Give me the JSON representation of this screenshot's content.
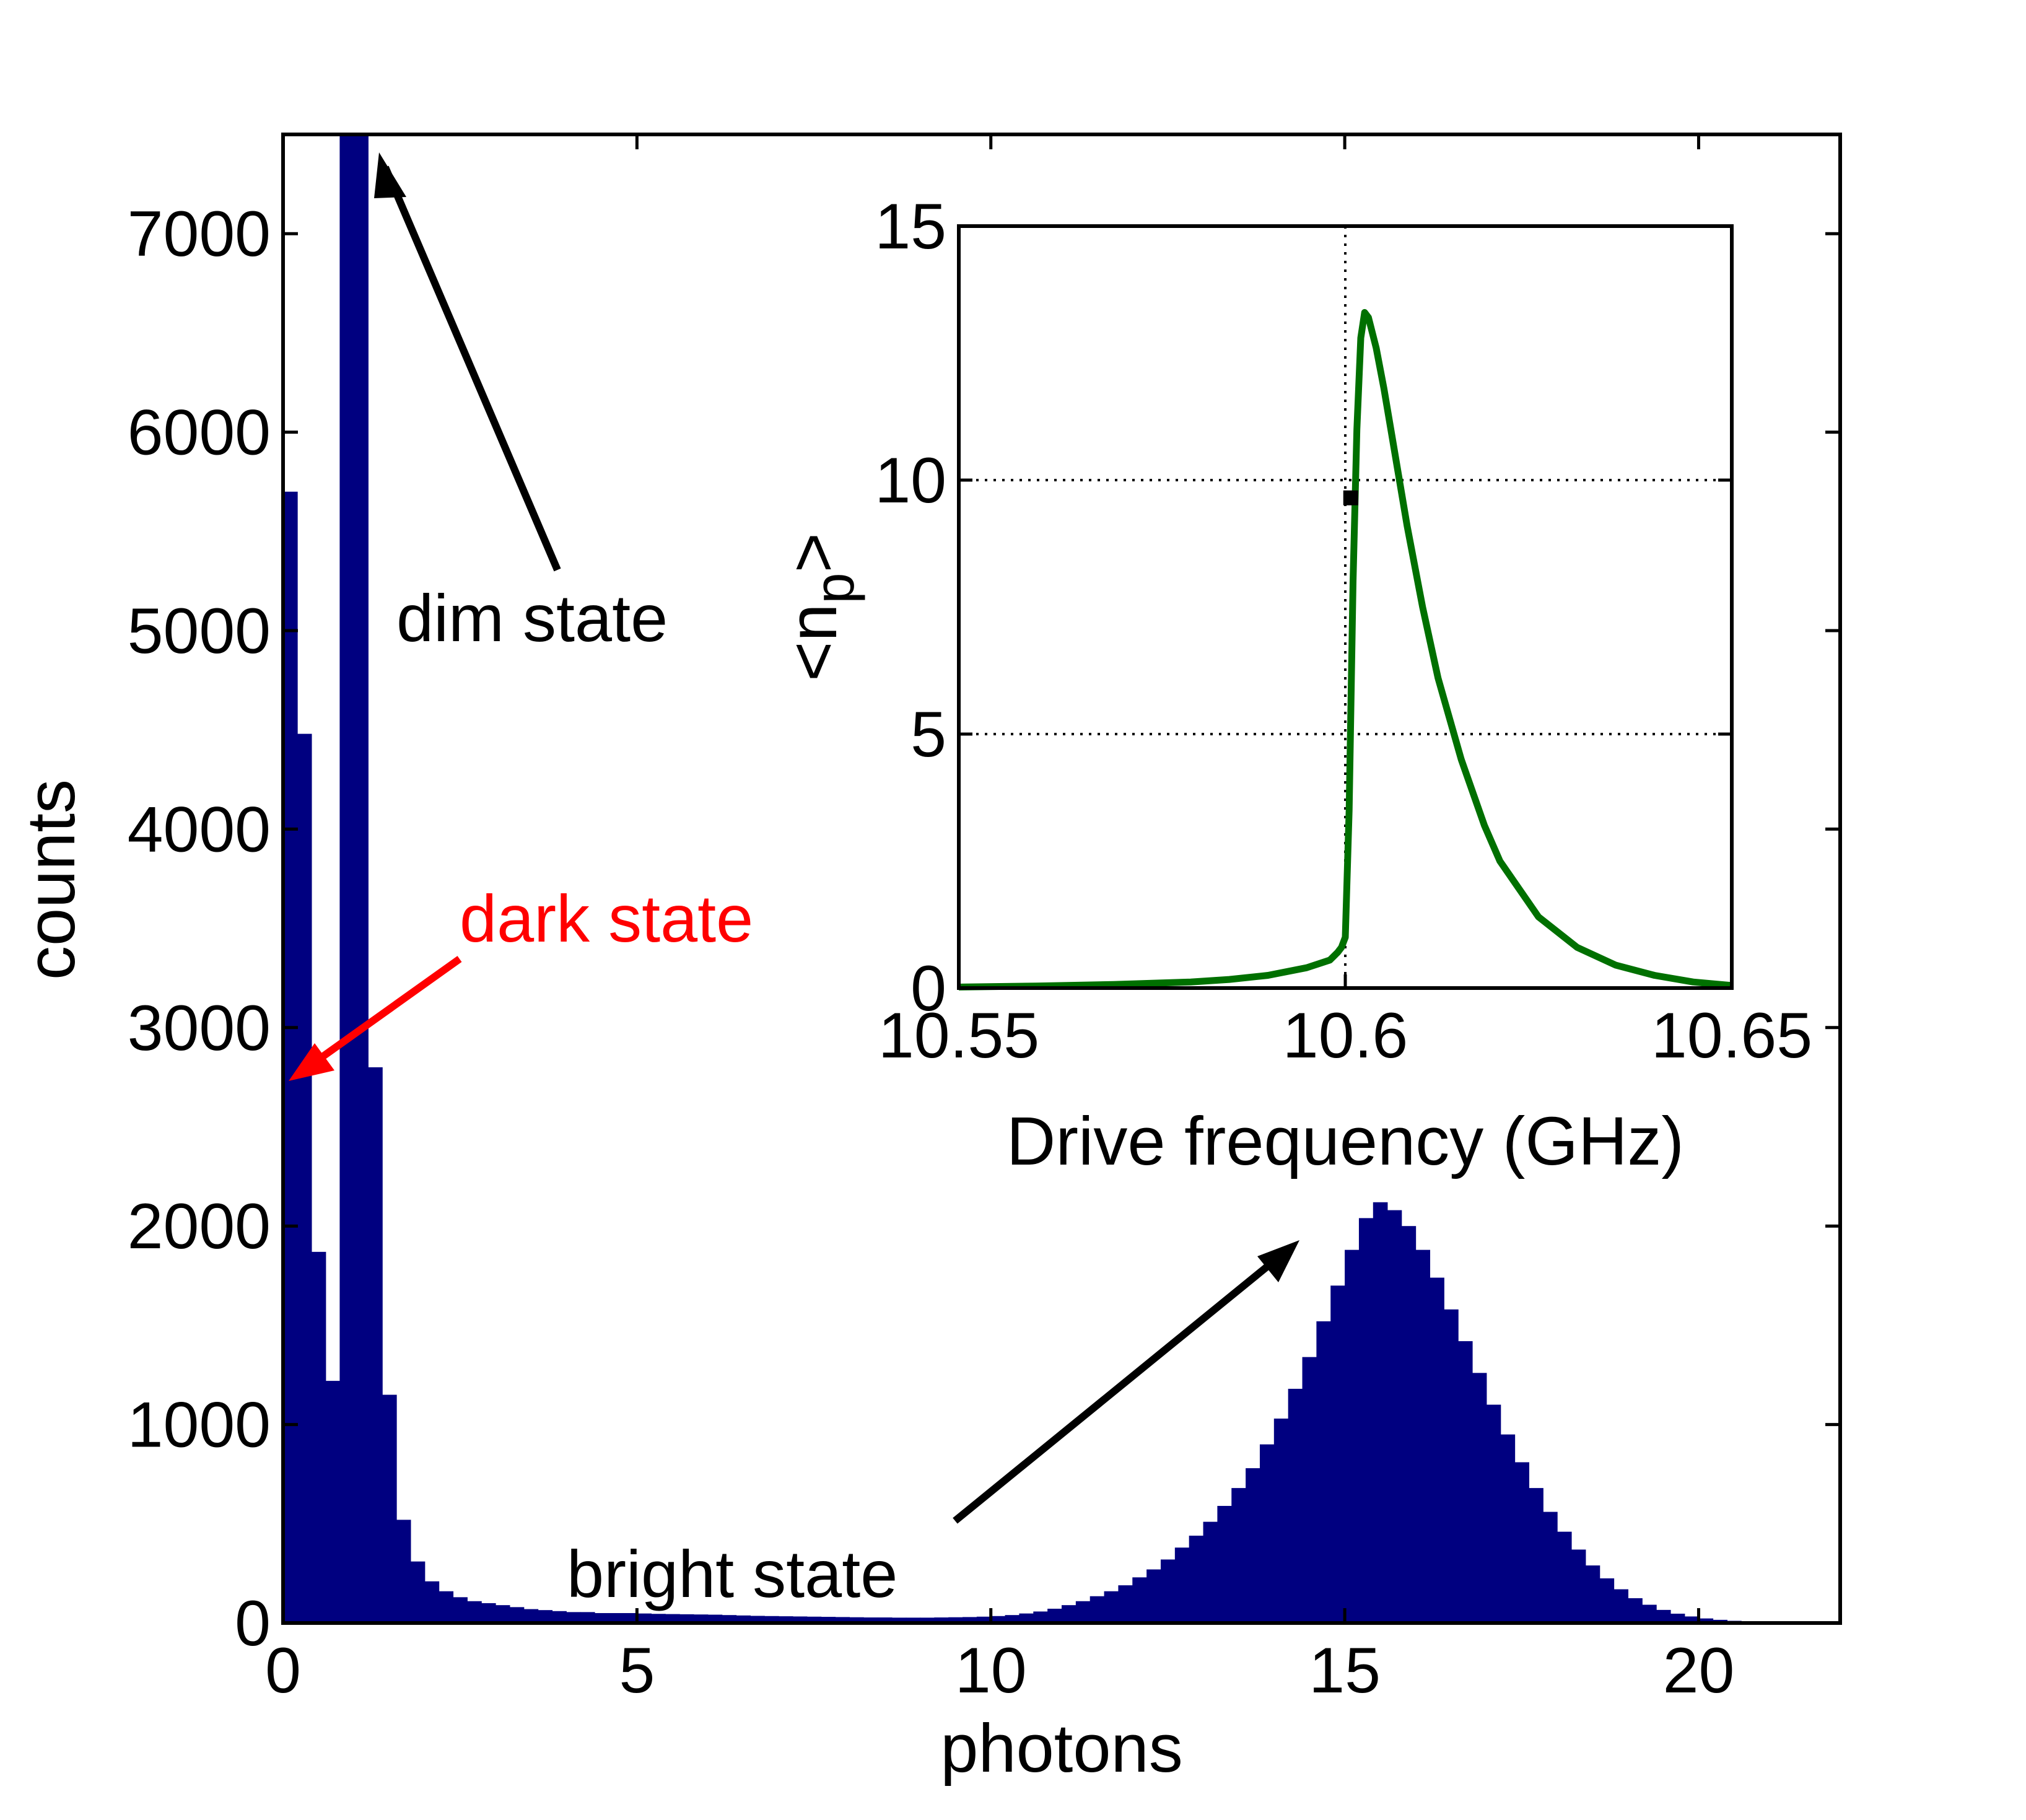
{
  "chart_data": [
    {
      "type": "bar",
      "role": "main-histogram",
      "xlabel": "photons",
      "ylabel": "counts",
      "xlim": [
        0,
        22
      ],
      "ylim": [
        0,
        7500
      ],
      "xticks": [
        0,
        5,
        10,
        15,
        20
      ],
      "yticks": [
        0,
        1000,
        2000,
        3000,
        4000,
        5000,
        6000,
        7000
      ],
      "grid": false,
      "color": "#000080",
      "bin_width": 0.2,
      "bins": [
        [
          0.0,
          5700
        ],
        [
          0.2,
          4480
        ],
        [
          0.4,
          1870
        ],
        [
          0.6,
          1220
        ],
        [
          0.8,
          7500
        ],
        [
          1.0,
          7500
        ],
        [
          1.2,
          2800
        ],
        [
          1.4,
          1150
        ],
        [
          1.6,
          520
        ],
        [
          1.8,
          310
        ],
        [
          2.0,
          210
        ],
        [
          2.2,
          160
        ],
        [
          2.4,
          130
        ],
        [
          2.6,
          110
        ],
        [
          2.8,
          100
        ],
        [
          3.0,
          90
        ],
        [
          3.2,
          80
        ],
        [
          3.4,
          70
        ],
        [
          3.6,
          65
        ],
        [
          3.8,
          60
        ],
        [
          4.0,
          55
        ],
        [
          4.2,
          55
        ],
        [
          4.4,
          50
        ],
        [
          4.6,
          50
        ],
        [
          4.8,
          50
        ],
        [
          5.0,
          48
        ],
        [
          5.2,
          46
        ],
        [
          5.4,
          45
        ],
        [
          5.6,
          44
        ],
        [
          5.8,
          43
        ],
        [
          6.0,
          42
        ],
        [
          6.2,
          40
        ],
        [
          6.4,
          38
        ],
        [
          6.6,
          36
        ],
        [
          6.8,
          35
        ],
        [
          7.0,
          34
        ],
        [
          7.2,
          33
        ],
        [
          7.4,
          32
        ],
        [
          7.6,
          31
        ],
        [
          7.8,
          30
        ],
        [
          8.0,
          29
        ],
        [
          8.2,
          28
        ],
        [
          8.4,
          28
        ],
        [
          8.6,
          27
        ],
        [
          8.8,
          27
        ],
        [
          9.0,
          27
        ],
        [
          9.2,
          28
        ],
        [
          9.4,
          29
        ],
        [
          9.6,
          30
        ],
        [
          9.8,
          32
        ],
        [
          10.0,
          35
        ],
        [
          10.2,
          40
        ],
        [
          10.4,
          48
        ],
        [
          10.6,
          58
        ],
        [
          10.8,
          72
        ],
        [
          11.0,
          90
        ],
        [
          11.2,
          110
        ],
        [
          11.4,
          135
        ],
        [
          11.6,
          160
        ],
        [
          11.8,
          190
        ],
        [
          12.0,
          230
        ],
        [
          12.2,
          270
        ],
        [
          12.4,
          320
        ],
        [
          12.6,
          380
        ],
        [
          12.8,
          440
        ],
        [
          13.0,
          510
        ],
        [
          13.2,
          590
        ],
        [
          13.4,
          680
        ],
        [
          13.6,
          780
        ],
        [
          13.8,
          900
        ],
        [
          14.0,
          1030
        ],
        [
          14.2,
          1180
        ],
        [
          14.4,
          1340
        ],
        [
          14.6,
          1520
        ],
        [
          14.8,
          1700
        ],
        [
          15.0,
          1880
        ],
        [
          15.2,
          2040
        ],
        [
          15.4,
          2120
        ],
        [
          15.6,
          2080
        ],
        [
          15.8,
          2000
        ],
        [
          16.0,
          1880
        ],
        [
          16.2,
          1740
        ],
        [
          16.4,
          1580
        ],
        [
          16.6,
          1420
        ],
        [
          16.8,
          1260
        ],
        [
          17.0,
          1100
        ],
        [
          17.2,
          950
        ],
        [
          17.4,
          810
        ],
        [
          17.6,
          680
        ],
        [
          17.8,
          560
        ],
        [
          18.0,
          460
        ],
        [
          18.2,
          370
        ],
        [
          18.4,
          290
        ],
        [
          18.6,
          225
        ],
        [
          18.8,
          170
        ],
        [
          19.0,
          125
        ],
        [
          19.2,
          92
        ],
        [
          19.4,
          66
        ],
        [
          19.6,
          47
        ],
        [
          19.8,
          33
        ],
        [
          20.0,
          23
        ],
        [
          20.2,
          16
        ],
        [
          20.4,
          11
        ],
        [
          20.6,
          8
        ],
        [
          20.8,
          5
        ],
        [
          21.0,
          3
        ],
        [
          21.2,
          2
        ],
        [
          21.4,
          1
        ],
        [
          21.6,
          1
        ],
        [
          21.8,
          0
        ]
      ],
      "annotations": [
        {
          "text": "dim state",
          "color": "#000000",
          "points_to": [
            1.4,
            7400
          ]
        },
        {
          "text": "dark state",
          "color": "#ff0000",
          "points_to": [
            0.1,
            2780
          ]
        },
        {
          "text": "bright state",
          "color": "#000000",
          "points_to": [
            14.4,
            1910
          ]
        }
      ]
    },
    {
      "type": "line",
      "role": "inset",
      "xlabel": "Drive frequency (GHz)",
      "ylabel_main": "<n",
      "ylabel_sub": "p",
      "ylabel_end": ">",
      "xlim": [
        10.55,
        10.65
      ],
      "ylim": [
        0,
        15
      ],
      "xticks": [
        "10.55",
        "10.6",
        "10.65"
      ],
      "yticks": [
        "0",
        "5",
        "10",
        "15"
      ],
      "grid": "dotted at y=5, y=10 and x=10.6",
      "color": "#007000",
      "series": [
        {
          "x": [
            10.55,
            10.56,
            10.57,
            10.58,
            10.585,
            10.59,
            10.595,
            10.598,
            10.599,
            10.5995,
            10.6,
            10.6005,
            10.601,
            10.6015,
            10.602,
            10.6025,
            10.603,
            10.604,
            10.605,
            10.606,
            10.608,
            10.61,
            10.612,
            10.615,
            10.618,
            10.62,
            10.625,
            10.63,
            10.635,
            10.64,
            10.645,
            10.65
          ],
          "y": [
            0.02,
            0.04,
            0.07,
            0.12,
            0.17,
            0.25,
            0.4,
            0.55,
            0.7,
            0.8,
            1.0,
            3.5,
            8.0,
            11.0,
            12.8,
            13.3,
            13.2,
            12.6,
            11.8,
            10.9,
            9.1,
            7.5,
            6.1,
            4.5,
            3.2,
            2.5,
            1.4,
            0.8,
            0.45,
            0.25,
            0.12,
            0.05
          ]
        }
      ],
      "marker": {
        "x": 10.6007,
        "y": 9.65,
        "shape": "square",
        "color": "#000000"
      }
    }
  ]
}
